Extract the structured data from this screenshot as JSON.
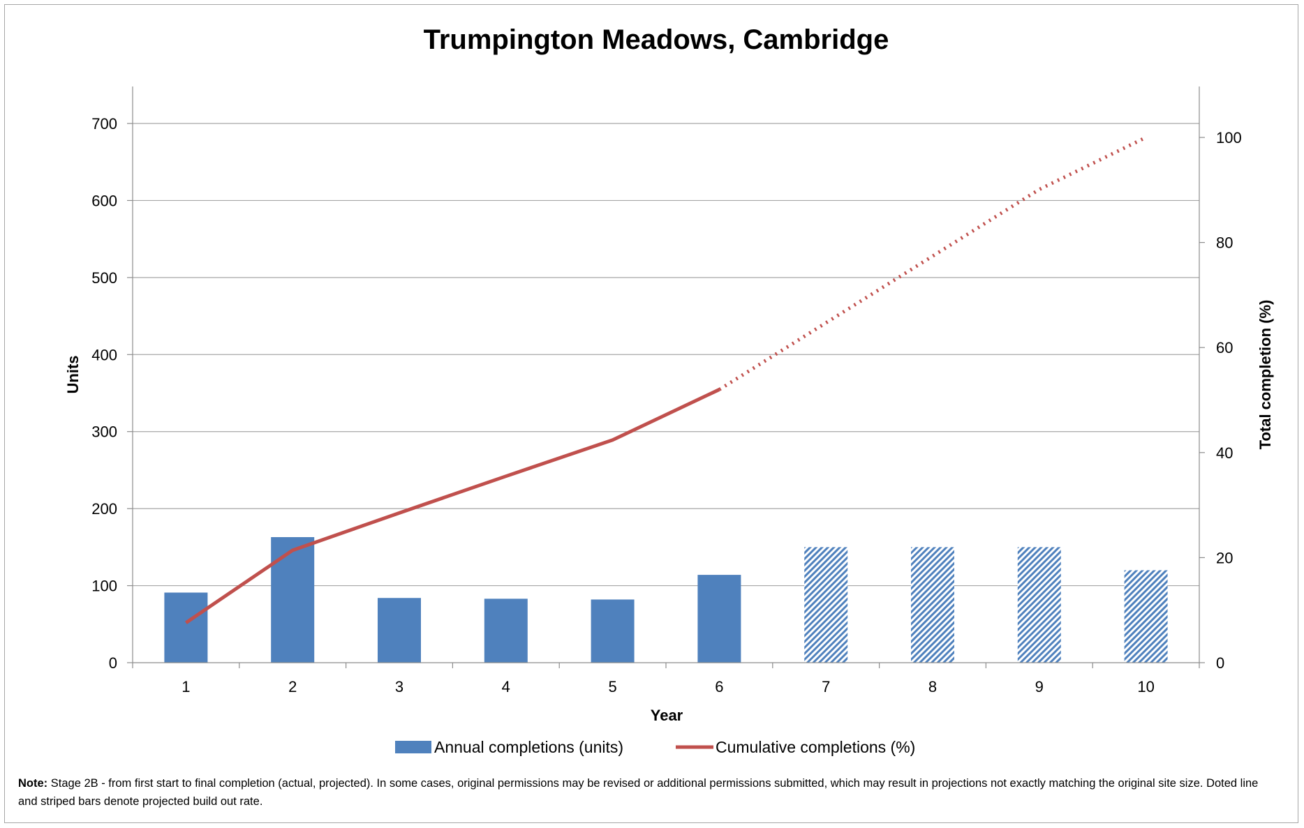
{
  "chart_data": {
    "type": "bar",
    "title": "Trumpington Meadows, Cambridge",
    "xlabel": "Year",
    "ylabel": "Units",
    "y2label": "Total completion (%)",
    "categories": [
      "1",
      "2",
      "3",
      "4",
      "5",
      "6",
      "7",
      "8",
      "9",
      "10"
    ],
    "ylim": [
      0,
      700
    ],
    "y2lim": [
      0,
      100
    ],
    "yticks": [
      "0",
      "100",
      "200",
      "300",
      "400",
      "500",
      "600",
      "700"
    ],
    "y2ticks": [
      "0",
      "20",
      "40",
      "60",
      "80",
      "100"
    ],
    "grid": true,
    "legend_position": "bottom",
    "series": [
      {
        "name": "Annual completions (units)",
        "kind": "bar",
        "axis": "left",
        "color": "#4f81bd",
        "values": [
          91,
          163,
          84,
          83,
          82,
          114,
          150,
          150,
          150,
          120
        ],
        "projected_from_index": 6
      },
      {
        "name": "Cumulative completions (%)",
        "kind": "line",
        "axis": "right",
        "color": "#c0504d",
        "values": [
          7.6,
          21.4,
          28.5,
          35.5,
          42.4,
          52.0,
          64.7,
          77.4,
          90.1,
          100.0
        ],
        "projected_from_index": 5
      }
    ]
  },
  "note": {
    "label": "Note:",
    "text": " Stage 2B - from first start to final completion (actual, projected). In some cases, original permissions  may be revised or additional permissions submitted, which may result in projections not exactly matching the original site size. Doted line and striped bars denote projected build out rate."
  }
}
